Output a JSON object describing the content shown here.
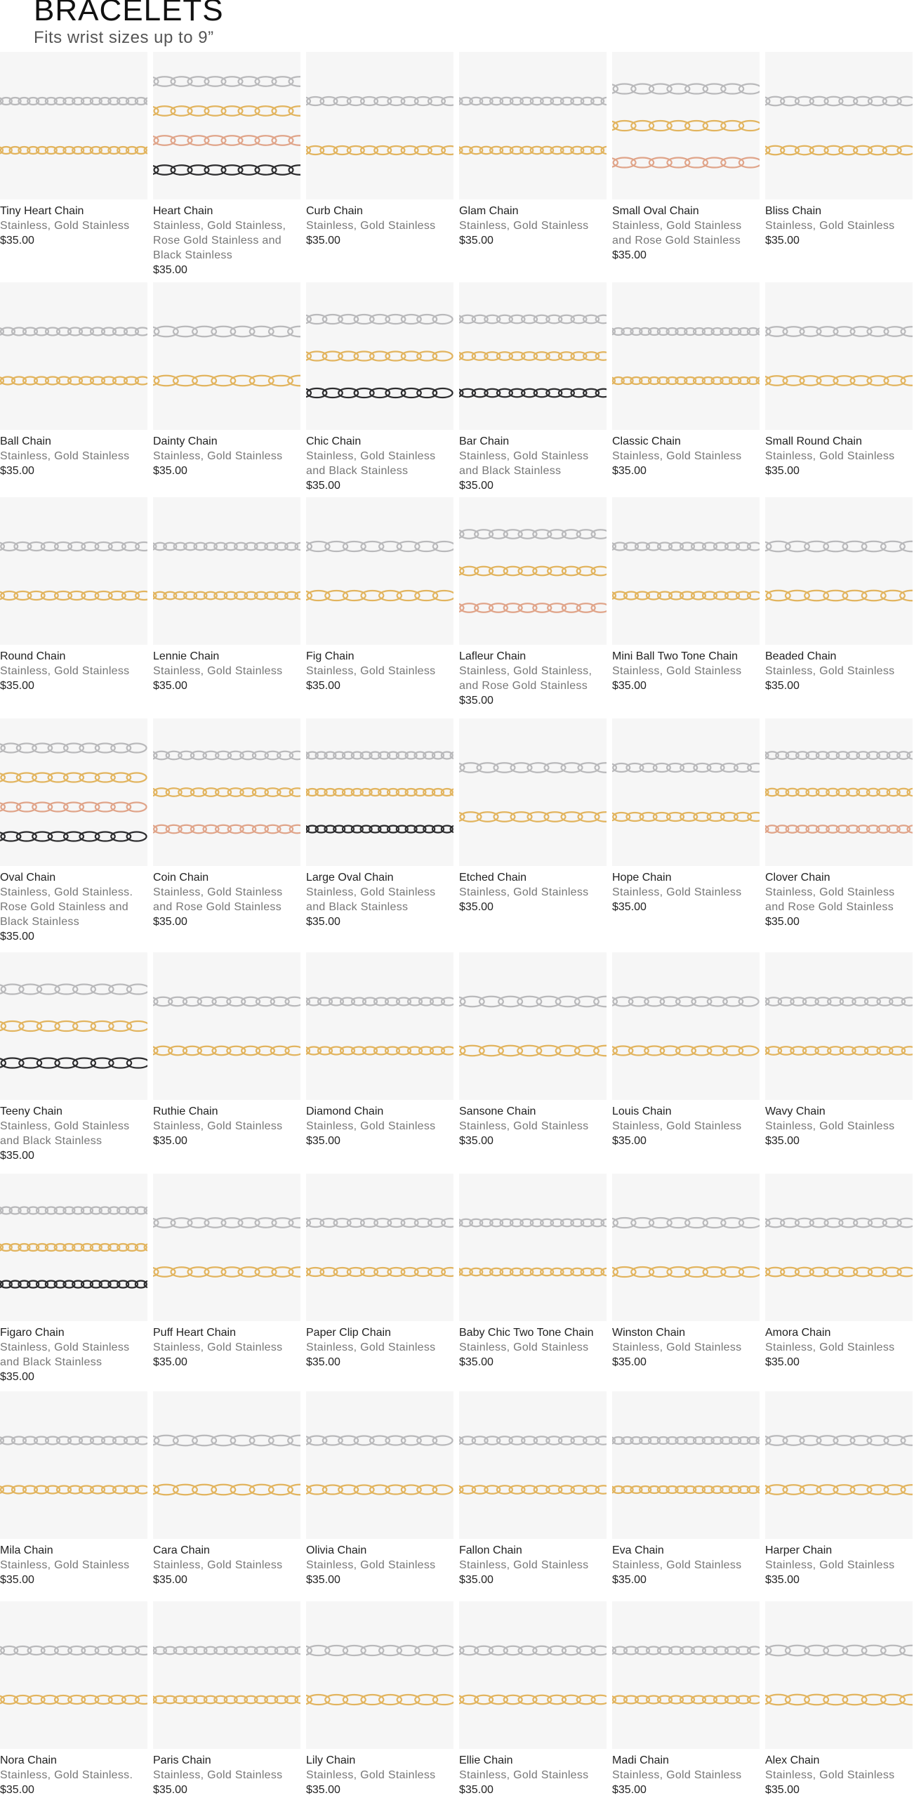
{
  "header": {
    "title": "BRACELETS",
    "subtitle": "Fits wrist sizes up to 9”"
  },
  "products": [
    {
      "name": "Tiny Heart Chain",
      "variants": "Stainless, Gold Stainless",
      "price": "$35.00"
    },
    {
      "name": "Heart Chain",
      "variants": "Stainless, Gold Stainless, Rose Gold Stainless and Black Stainless",
      "price": "$35.00"
    },
    {
      "name": "Curb Chain",
      "variants": "Stainless, Gold Stainless",
      "price": "$35.00"
    },
    {
      "name": "Glam Chain",
      "variants": "Stainless, Gold Stainless",
      "price": "$35.00"
    },
    {
      "name": "Small Oval Chain",
      "variants": "Stainless, Gold Stainless and Rose Gold Stainless",
      "price": "$35.00"
    },
    {
      "name": "Bliss Chain",
      "variants": "Stainless, Gold Stainless",
      "price": "$35.00"
    },
    {
      "name": "Ball Chain",
      "variants": "Stainless, Gold Stainless",
      "price": "$35.00"
    },
    {
      "name": "Dainty Chain",
      "variants": "Stainless, Gold Stainless",
      "price": "$35.00"
    },
    {
      "name": "Chic Chain",
      "variants": "Stainless, Gold Stainless and Black Stainless",
      "price": "$35.00"
    },
    {
      "name": "Bar Chain",
      "variants": "Stainless, Gold Stainless and Black Stainless",
      "price": "$35.00"
    },
    {
      "name": "Classic Chain",
      "variants": "Stainless, Gold Stainless",
      "price": "$35.00"
    },
    {
      "name": "Small Round Chain",
      "variants": "Stainless, Gold Stainless",
      "price": "$35.00"
    },
    {
      "name": "Round Chain",
      "variants": "Stainless, Gold Stainless",
      "price": "$35.00"
    },
    {
      "name": "Lennie Chain",
      "variants": "Stainless, Gold Stainless",
      "price": "$35.00"
    },
    {
      "name": "Fig Chain",
      "variants": "Stainless, Gold Stainless",
      "price": "$35.00"
    },
    {
      "name": "Lafleur Chain",
      "variants": "Stainless, Gold Stainless, and Rose Gold Stainless",
      "price": "$35.00"
    },
    {
      "name": "Mini Ball Two Tone Chain",
      "variants": "Stainless, Gold Stainless",
      "price": "$35.00"
    },
    {
      "name": "Beaded Chain",
      "variants": "Stainless, Gold Stainless",
      "price": "$35.00"
    },
    {
      "name": "Oval Chain",
      "variants": "Stainless, Gold Stainless. Rose Gold Stainless and Black Stainless",
      "price": "$35.00"
    },
    {
      "name": "Coin Chain",
      "variants": "Stainless, Gold Stainless and Rose Gold Stainless",
      "price": "$35.00"
    },
    {
      "name": "Large Oval Chain",
      "variants": "Stainless, Gold Stainless and Black Stainless",
      "price": "$35.00"
    },
    {
      "name": "Etched Chain",
      "variants": "Stainless, Gold Stainless",
      "price": "$35.00"
    },
    {
      "name": "Hope Chain",
      "variants": "Stainless, Gold Stainless",
      "price": "$35.00"
    },
    {
      "name": "Clover Chain",
      "variants": "Stainless, Gold Stainless and Rose Gold Stainless",
      "price": "$35.00"
    },
    {
      "name": "Teeny Chain",
      "variants": "Stainless, Gold Stainless and Black Stainless",
      "price": "$35.00"
    },
    {
      "name": "Ruthie Chain",
      "variants": "Stainless, Gold Stainless",
      "price": "$35.00"
    },
    {
      "name": "Diamond Chain",
      "variants": "Stainless, Gold Stainless",
      "price": "$35.00"
    },
    {
      "name": "Sansone Chain",
      "variants": "Stainless, Gold Stainless",
      "price": "$35.00"
    },
    {
      "name": "Louis Chain",
      "variants": "Stainless, Gold Stainless",
      "price": "$35.00"
    },
    {
      "name": "Wavy Chain",
      "variants": "Stainless, Gold Stainless",
      "price": "$35.00"
    },
    {
      "name": "Figaro Chain",
      "variants": "Stainless, Gold Stainless and Black Stainless",
      "price": "$35.00"
    },
    {
      "name": "Puff Heart Chain",
      "variants": "Stainless, Gold Stainless",
      "price": "$35.00"
    },
    {
      "name": "Paper Clip Chain",
      "variants": "Stainless, Gold Stainless",
      "price": "$35.00"
    },
    {
      "name": "Baby Chic Two Tone Chain",
      "variants": "Stainless, Gold Stainless",
      "price": "$35.00"
    },
    {
      "name": "Winston Chain",
      "variants": "Stainless, Gold Stainless",
      "price": "$35.00"
    },
    {
      "name": "Amora Chain",
      "variants": "Stainless, Gold Stainless",
      "price": "$35.00"
    },
    {
      "name": "Mila Chain",
      "variants": "Stainless, Gold Stainless",
      "price": "$35.00"
    },
    {
      "name": "Cara Chain",
      "variants": "Stainless, Gold Stainless",
      "price": "$35.00"
    },
    {
      "name": "Olivia Chain",
      "variants": "Stainless, Gold Stainless",
      "price": "$35.00"
    },
    {
      "name": "Fallon Chain",
      "variants": "Stainless, Gold Stainless",
      "price": "$35.00"
    },
    {
      "name": "Eva Chain",
      "variants": "Stainless, Gold Stainless",
      "price": "$35.00"
    },
    {
      "name": "Harper Chain",
      "variants": "Stainless, Gold Stainless",
      "price": "$35.00"
    },
    {
      "name": "Nora Chain",
      "variants": "Stainless, Gold Stainless.",
      "price": "$35.00"
    },
    {
      "name": "Paris Chain",
      "variants": "Stainless, Gold Stainless",
      "price": "$35.00"
    },
    {
      "name": "Lily Chain",
      "variants": "Stainless, Gold Stainless",
      "price": "$35.00"
    },
    {
      "name": "Ellie Chain",
      "variants": "Stainless, Gold Stainless",
      "price": "$35.00"
    },
    {
      "name": "Madi Chain",
      "variants": "Stainless, Gold Stainless",
      "price": "$35.00"
    },
    {
      "name": "Alex Chain",
      "variants": "Stainless, Gold Stainless",
      "price": "$35.00"
    }
  ]
}
